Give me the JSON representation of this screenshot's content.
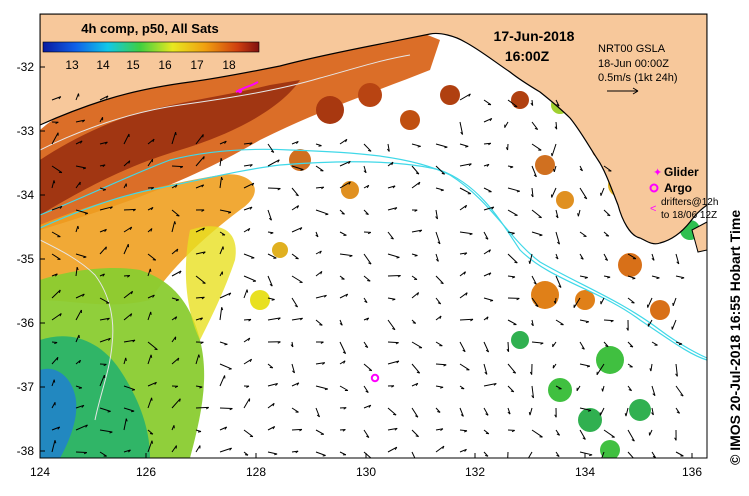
{
  "colorbar": {
    "title": "4h comp, p50, All Sats",
    "ticks": [
      "13",
      "14",
      "15",
      "16",
      "17",
      "18"
    ]
  },
  "timestamp": {
    "date": "17-Jun-2018",
    "time": "16:00Z"
  },
  "info": {
    "product": "NRT00 GSLA",
    "date": "18-Jun 00:00Z",
    "scale": "0.5m/s (1kt 24h)"
  },
  "legend": {
    "glider": "Glider",
    "argo": "Argo",
    "drifters_line1": "drifters@12h",
    "drifters_line2": "to 18/06 12Z"
  },
  "credit": "© IMOS 20-Jul-2018 16:55 Hobart Time",
  "axes": {
    "lat_labels": [
      "-32",
      "-33",
      "-34",
      "-35",
      "-36",
      "-37",
      "-38"
    ],
    "lon_labels": [
      "124",
      "126",
      "128",
      "130",
      "132",
      "134",
      "136"
    ]
  },
  "colors": {
    "land": "#f7c89b",
    "ocean": "#ffffff",
    "coast": "#000000",
    "glider": "#ff00ff",
    "argo": "#ff00ff",
    "contour_cyan": "#40d8e8"
  }
}
